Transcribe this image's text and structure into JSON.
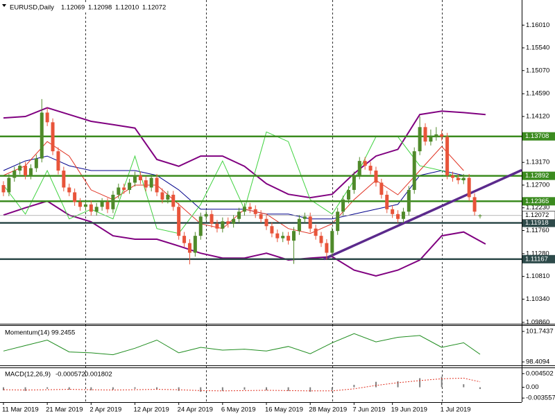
{
  "chart_data": [
    {
      "type": "candlestick",
      "title": "EURUSD,Daily",
      "header_values": [
        "1.12069",
        "1.12098",
        "1.12010",
        "1.12072"
      ],
      "xlim": [
        -0.63,
        94.6
      ],
      "ylim": [
        1.0983,
        1.1653
      ],
      "yticks": [
        {
          "value": 1.1601,
          "label": "1.16010"
        },
        {
          "value": 1.1554,
          "label": "1.15540"
        },
        {
          "value": 1.1507,
          "label": "1.15070"
        },
        {
          "value": 1.1459,
          "label": "1.14590"
        },
        {
          "value": 1.1412,
          "label": "1.14120"
        },
        {
          "value": 1.1317,
          "label": "1.13170"
        },
        {
          "value": 1.127,
          "label": "1.12700"
        },
        {
          "value": 1.1223,
          "label": "1.12230"
        },
        {
          "value": 1.1176,
          "label": "1.11760"
        },
        {
          "value": 1.1128,
          "label": "1.11280"
        },
        {
          "value": 1.1081,
          "label": "1.10810"
        },
        {
          "value": 1.1034,
          "label": "1.10340"
        },
        {
          "value": 1.0986,
          "label": "1.09860"
        }
      ],
      "up_color": "#4f8a2a",
      "down_color": "#e8543a",
      "open": [
        1.127,
        1.1255,
        1.1285,
        1.13,
        1.131,
        1.129,
        1.1305,
        1.1325,
        1.142,
        1.14,
        1.134,
        1.13,
        1.1265,
        1.1255,
        1.1235,
        1.1225,
        1.123,
        1.1215,
        1.1225,
        1.1235,
        1.122,
        1.125,
        1.1265,
        1.126,
        1.1275,
        1.129,
        1.128,
        1.1265,
        1.1285,
        1.1255,
        1.124,
        1.125,
        1.1225,
        1.1165,
        1.115,
        1.113,
        1.1165,
        1.1205,
        1.121,
        1.119,
        1.118,
        1.1195,
        1.119,
        1.12,
        1.1215,
        1.1225,
        1.122,
        1.121,
        1.12,
        1.1185,
        1.117,
        1.116,
        1.1165,
        1.1155,
        1.1175,
        1.12,
        1.1205,
        1.118,
        1.1165,
        1.115,
        1.113,
        1.1175,
        1.1215,
        1.124,
        1.126,
        1.129,
        1.132,
        1.131,
        1.13,
        1.1275,
        1.125,
        1.122,
        1.121,
        1.12,
        1.1215,
        1.126,
        1.134,
        1.139,
        1.136,
        1.137,
        1.1375,
        1.137,
        1.129,
        1.1285,
        1.128,
        1.1285,
        1.1245,
        1.12069
      ],
      "high": [
        1.1278,
        1.1293,
        1.1308,
        1.1318,
        1.1318,
        1.1313,
        1.1333,
        1.1448,
        1.143,
        1.1408,
        1.1348,
        1.1308,
        1.1273,
        1.1263,
        1.1243,
        1.1238,
        1.1238,
        1.1233,
        1.1243,
        1.1243,
        1.1258,
        1.1273,
        1.1273,
        1.1283,
        1.1298,
        1.1298,
        1.1288,
        1.1293,
        1.1293,
        1.1263,
        1.1258,
        1.1258,
        1.1233,
        1.1173,
        1.1158,
        1.1173,
        1.1213,
        1.1218,
        1.1218,
        1.1198,
        1.1203,
        1.1203,
        1.1208,
        1.1223,
        1.1233,
        1.1233,
        1.1228,
        1.1218,
        1.1208,
        1.1193,
        1.1178,
        1.1173,
        1.1173,
        1.1183,
        1.1208,
        1.1213,
        1.1213,
        1.1188,
        1.1173,
        1.1158,
        1.1183,
        1.1223,
        1.1248,
        1.1268,
        1.1298,
        1.1328,
        1.1328,
        1.1318,
        1.1308,
        1.1283,
        1.1258,
        1.1228,
        1.1218,
        1.1223,
        1.1268,
        1.1348,
        1.1412,
        1.1398,
        1.1385,
        1.139,
        1.1383,
        1.1378,
        1.1298,
        1.1293,
        1.1293,
        1.1293,
        1.1253,
        1.12098
      ],
      "low": [
        1.1247,
        1.1247,
        1.1277,
        1.1292,
        1.1282,
        1.1282,
        1.1297,
        1.1317,
        1.1392,
        1.1332,
        1.1292,
        1.1257,
        1.1247,
        1.1227,
        1.1217,
        1.1217,
        1.1207,
        1.1207,
        1.1217,
        1.1212,
        1.1212,
        1.1242,
        1.1252,
        1.1252,
        1.1267,
        1.1272,
        1.1257,
        1.1257,
        1.1247,
        1.1232,
        1.1232,
        1.1217,
        1.1157,
        1.1142,
        1.1106,
        1.1122,
        1.1157,
        1.1197,
        1.1182,
        1.1172,
        1.1172,
        1.1182,
        1.1182,
        1.1192,
        1.1207,
        1.1212,
        1.1202,
        1.1192,
        1.1177,
        1.1162,
        1.1152,
        1.1152,
        1.1147,
        1.1107,
        1.1167,
        1.1192,
        1.1172,
        1.1157,
        1.1142,
        1.1116,
        1.1122,
        1.1167,
        1.1207,
        1.1232,
        1.1252,
        1.1282,
        1.1302,
        1.1292,
        1.1267,
        1.1242,
        1.1212,
        1.1202,
        1.1192,
        1.1192,
        1.1207,
        1.1252,
        1.1332,
        1.1352,
        1.1352,
        1.1362,
        1.1362,
        1.1282,
        1.1277,
        1.1272,
        1.1272,
        1.1237,
        1.1207,
        1.1201
      ],
      "close": [
        1.1255,
        1.1285,
        1.13,
        1.131,
        1.129,
        1.1305,
        1.1325,
        1.142,
        1.14,
        1.134,
        1.13,
        1.1265,
        1.1255,
        1.1235,
        1.1225,
        1.123,
        1.1215,
        1.1225,
        1.1235,
        1.122,
        1.125,
        1.1265,
        1.126,
        1.1275,
        1.129,
        1.128,
        1.1265,
        1.1285,
        1.1255,
        1.124,
        1.125,
        1.1225,
        1.1165,
        1.115,
        1.113,
        1.1165,
        1.1205,
        1.121,
        1.119,
        1.118,
        1.1195,
        1.119,
        1.12,
        1.1215,
        1.1225,
        1.122,
        1.121,
        1.12,
        1.1185,
        1.117,
        1.116,
        1.1165,
        1.1155,
        1.1175,
        1.12,
        1.1205,
        1.118,
        1.1165,
        1.115,
        1.113,
        1.1175,
        1.1215,
        1.124,
        1.126,
        1.129,
        1.132,
        1.131,
        1.13,
        1.1275,
        1.125,
        1.122,
        1.121,
        1.12,
        1.1215,
        1.126,
        1.134,
        1.139,
        1.136,
        1.137,
        1.1375,
        1.137,
        1.129,
        1.1285,
        1.128,
        1.1285,
        1.1245,
        1.1215,
        1.12072
      ],
      "overlays": [
        {
          "color": "#800080",
          "x": [
            0,
            4,
            8,
            12,
            16,
            20,
            24,
            28,
            32,
            36,
            40,
            44,
            48,
            52,
            56,
            60,
            64,
            68,
            72,
            76,
            80,
            84,
            88
          ],
          "values": [
            1.1409,
            1.1412,
            1.143,
            1.1416,
            1.1402,
            1.1395,
            1.1388,
            1.1323,
            1.1309,
            1.133,
            1.133,
            1.1309,
            1.1273,
            1.1251,
            1.1244,
            1.1251,
            1.1294,
            1.133,
            1.1344,
            1.1416,
            1.1423,
            1.142,
            1.1416
          ]
        },
        {
          "color": "#800080",
          "x": [
            0,
            4,
            8,
            12,
            16,
            20,
            24,
            28,
            32,
            36,
            40,
            44,
            48,
            52,
            56,
            60,
            64,
            68,
            72,
            76,
            80,
            84,
            88
          ],
          "values": [
            1.1208,
            1.1223,
            1.1237,
            1.1208,
            1.1194,
            1.1165,
            1.1158,
            1.1158,
            1.1144,
            1.1129,
            1.1119,
            1.1119,
            1.1129,
            1.1115,
            1.1119,
            1.1122,
            1.1094,
            1.1082,
            1.1094,
            1.1115,
            1.1165,
            1.1173,
            1.1148
          ]
        },
        {
          "color": "#00008b",
          "x": [
            0,
            4,
            8,
            12,
            16,
            20,
            24,
            28,
            32,
            36,
            40,
            44,
            48,
            52,
            56,
            60,
            64,
            68,
            72,
            76,
            80,
            84
          ],
          "values": [
            1.13,
            1.132,
            1.133,
            1.131,
            1.13,
            1.13,
            1.13,
            1.129,
            1.126,
            1.122,
            1.122,
            1.122,
            1.121,
            1.121,
            1.12,
            1.12,
            1.121,
            1.122,
            1.123,
            1.129,
            1.13,
            1.129
          ]
        },
        {
          "color": "#e03020",
          "x": [
            0,
            4,
            8,
            12,
            16,
            20,
            24,
            28,
            32,
            36,
            40,
            44,
            48,
            52,
            56,
            60,
            64,
            68,
            72,
            76,
            80,
            84
          ],
          "values": [
            1.129,
            1.131,
            1.136,
            1.133,
            1.126,
            1.124,
            1.127,
            1.127,
            1.123,
            1.119,
            1.118,
            1.122,
            1.121,
            1.118,
            1.117,
            1.119,
            1.124,
            1.128,
            1.125,
            1.13,
            1.135,
            1.13
          ]
        },
        {
          "color": "#3ed23e",
          "x": [
            0,
            4,
            8,
            12,
            16,
            20,
            24,
            28,
            32,
            36,
            40,
            44,
            48,
            52,
            56,
            60,
            64,
            68,
            72,
            76,
            80,
            84
          ],
          "values": [
            1.127,
            1.121,
            1.13,
            1.12,
            1.122,
            1.12,
            1.133,
            1.118,
            1.117,
            1.123,
            1.132,
            1.122,
            1.138,
            1.136,
            1.124,
            1.121,
            1.128,
            1.137,
            1.137,
            1.131,
            1.13,
            1.128
          ]
        }
      ],
      "levels": [
        {
          "value": 1.13708,
          "color": "#3b8b1f"
        },
        {
          "value": 1.12892,
          "color": "#3b8b1f"
        },
        {
          "value": 1.12365,
          "color": "#3b8b1f"
        },
        {
          "value": 1.11918,
          "color": "#2d4a4a"
        },
        {
          "value": 1.11167,
          "color": "#2d4a4a"
        }
      ],
      "last_price": 1.12072,
      "trendline": {
        "x": [
          58.5,
          94.6
        ],
        "y": [
          1.1117,
          1.1301
        ],
        "color": "#5b2a8c"
      },
      "vlines": [
        15,
        37,
        60,
        80
      ]
    },
    {
      "type": "line",
      "title": "Momentum(14)",
      "ylim": [
        98.03,
        102.35
      ],
      "yticks": [
        101.7437,
        98.4094
      ],
      "color": "#1e8c1e",
      "x": [
        0,
        4,
        8,
        12,
        16,
        20,
        24,
        28,
        32,
        36,
        40,
        44,
        48,
        52,
        56,
        60,
        64,
        68,
        72,
        76,
        80,
        84,
        87
      ],
      "values": [
        99.6,
        100.2,
        100.8,
        99.5,
        99.4,
        99.2,
        99.9,
        100.8,
        99.4,
        100.0,
        99.7,
        99.8,
        99.6,
        100.1,
        99.3,
        100.5,
        101.5,
        100.6,
        101.1,
        101.3,
        100.0,
        100.5,
        99.2455
      ]
    },
    {
      "type": "macd",
      "title": "MACD(12,26,9)",
      "ylim": [
        -0.0049,
        0.0063
      ],
      "yticks": [
        0.004502,
        {
          "value": 0,
          "label": "0.00"
        },
        -0.003557
      ],
      "xticks": [
        {
          "value": 0,
          "label": "11 Mar 2019"
        },
        {
          "value": 8,
          "label": "21 Mar 2019"
        },
        {
          "value": 16,
          "label": "2 Apr 2019"
        },
        {
          "value": 24,
          "label": "12 Apr 2019"
        },
        {
          "value": 32,
          "label": "24 Apr 2019"
        },
        {
          "value": 40,
          "label": "6 May 2019"
        },
        {
          "value": 48,
          "label": "16 May 2019"
        },
        {
          "value": 56,
          "label": "28 May 2019"
        },
        {
          "value": 64,
          "label": "7 Jun 2019"
        },
        {
          "value": 71,
          "label": "19 Jun 2019"
        },
        {
          "value": 80,
          "label": "1 Jul 2019"
        }
      ],
      "x": [
        0,
        4,
        8,
        12,
        16,
        20,
        24,
        28,
        32,
        36,
        40,
        44,
        48,
        52,
        56,
        60,
        64,
        68,
        72,
        76,
        80,
        84,
        87
      ],
      "series": [
        {
          "color": "#808080",
          "values": [
            -0.001,
            -0.0012,
            -0.0005,
            -0.0008,
            -0.001,
            -0.0008,
            -0.0005,
            -0.0006,
            -0.0012,
            -0.0015,
            -0.0012,
            -0.0008,
            -0.001,
            -0.0012,
            -0.0015,
            -0.001,
            0.0008,
            0.0018,
            0.002,
            0.003,
            0.0035,
            0.001,
            -0.000572
          ]
        },
        {
          "color": "#e03020",
          "values": [
            -0.0008,
            -0.0009,
            -0.0008,
            -0.0007,
            -0.0008,
            -0.0009,
            -0.0008,
            -0.0007,
            -0.0008,
            -0.0011,
            -0.0012,
            -0.0011,
            -0.001,
            -0.0011,
            -0.0012,
            -0.0012,
            -0.0005,
            0.0006,
            0.0015,
            0.0022,
            0.0028,
            0.003,
            0.001802
          ]
        }
      ]
    }
  ]
}
